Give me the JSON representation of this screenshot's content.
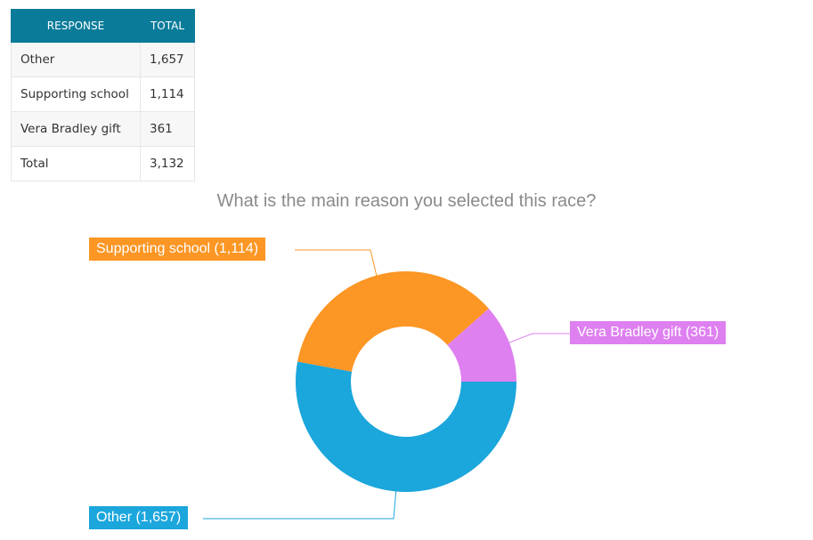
{
  "table": {
    "headers": [
      "RESPONSE",
      "TOTAL"
    ],
    "rows": [
      [
        "Other",
        "1,657"
      ],
      [
        "Supporting school",
        "1,114"
      ],
      [
        "Vera Bradley gift",
        "361"
      ],
      [
        "Total",
        "3,132"
      ]
    ]
  },
  "chart_data": {
    "type": "pie",
    "title": "What is the main reason you selected this race?",
    "donut": true,
    "categories": [
      "Other",
      "Supporting school",
      "Vera Bradley gift"
    ],
    "values": [
      1657,
      1114,
      361
    ],
    "labels": [
      "Other (1,657)",
      "Supporting school (1,114)",
      "Vera Bradley gift (361)"
    ],
    "colors": [
      "#1ba6dc",
      "#fc9624",
      "#de80f0"
    ]
  }
}
